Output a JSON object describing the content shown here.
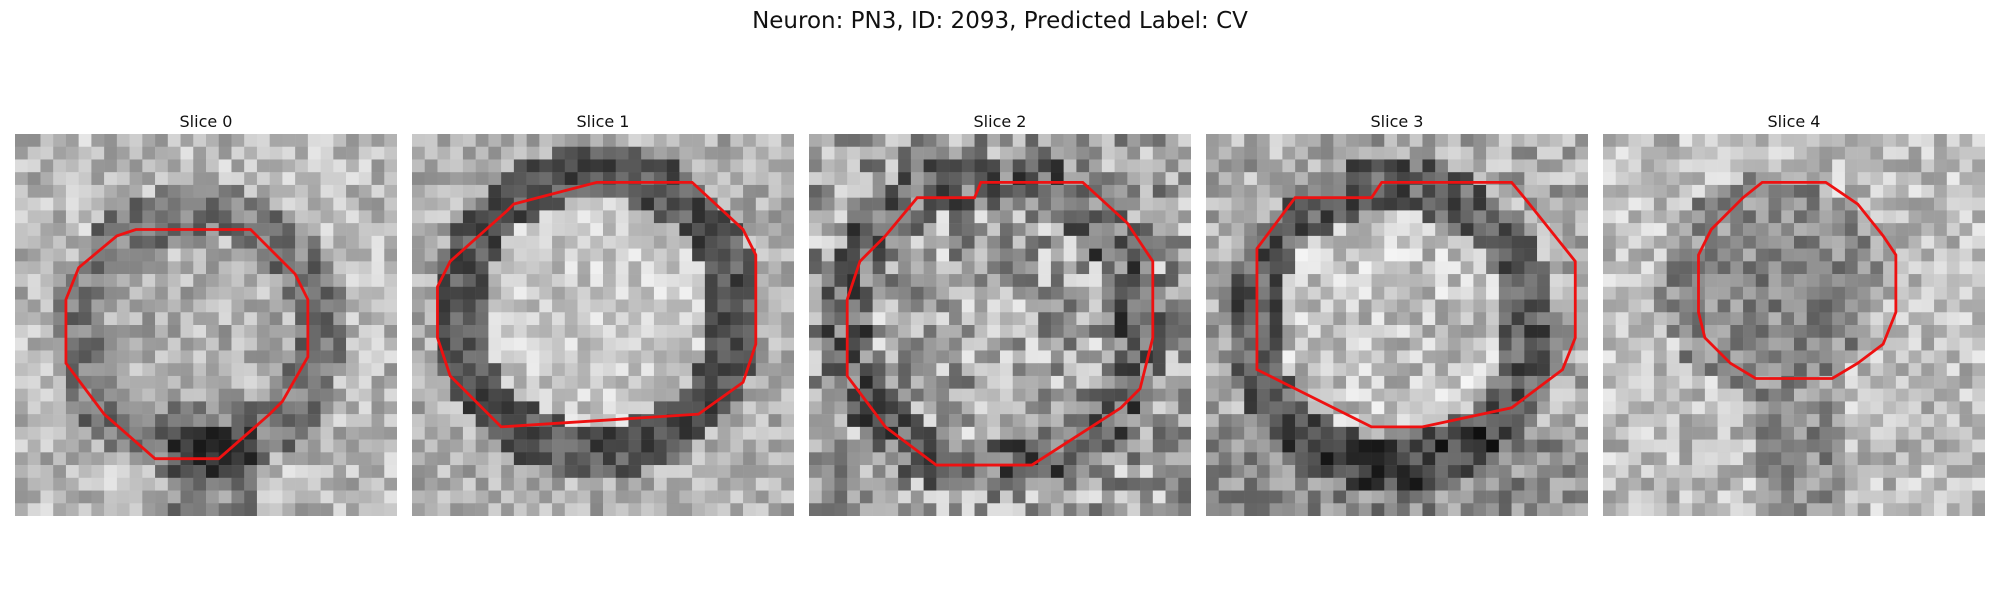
{
  "figure": {
    "title": "Neuron: PN3, ID: 2093, Predicted Label: CV"
  },
  "slices": [
    {
      "title": "Slice 0"
    },
    {
      "title": "Slice 1"
    },
    {
      "title": "Slice 2"
    },
    {
      "title": "Slice 3"
    },
    {
      "title": "Slice 4"
    }
  ],
  "colors": {
    "contour": "#ee1111",
    "background": "#ffffff"
  }
}
